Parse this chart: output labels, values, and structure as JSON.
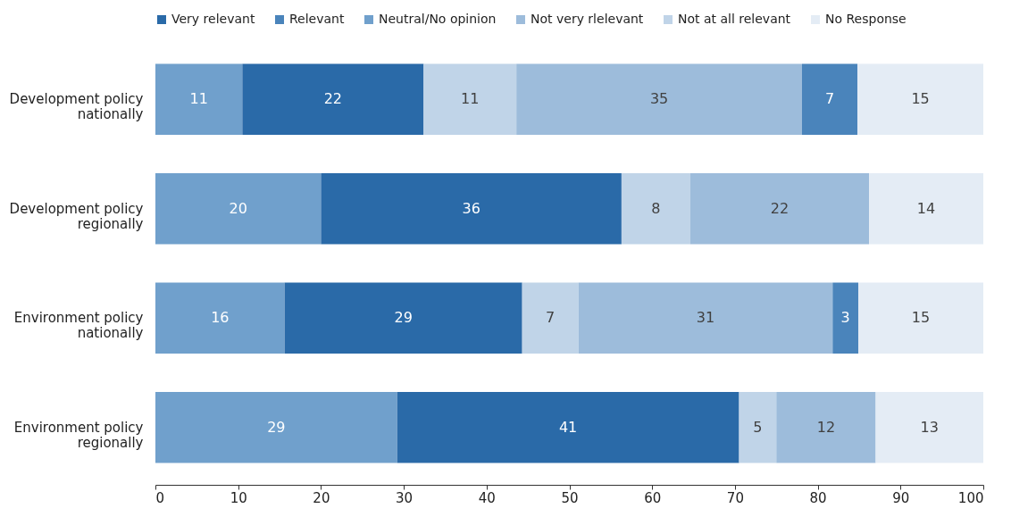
{
  "chart_data": {
    "type": "bar",
    "orientation": "horizontal",
    "stacked": true,
    "categories": [
      "Development policy nationally",
      "Development policy regionally",
      "Environment policy nationally",
      "Environment policy regionally"
    ],
    "series": [
      {
        "name": "Neutral/No opinion",
        "color": "#70a0cc",
        "values": [
          10.5,
          20,
          15.6,
          29.2
        ],
        "value_labels": [
          "11",
          "20",
          "16",
          "29"
        ]
      },
      {
        "name": "Very relevant",
        "color": "#2a6aa8",
        "values": [
          21.9,
          36.3,
          28.7,
          41.3
        ],
        "value_labels": [
          "22",
          "36",
          "29",
          "41"
        ]
      },
      {
        "name": "Not at all relevant",
        "color": "#c0d4e8",
        "values": [
          11.2,
          8.3,
          6.8,
          4.5
        ],
        "value_labels": [
          "11",
          "8",
          "7",
          "5"
        ]
      },
      {
        "name": "Not very rlelevant",
        "color": "#9dbcdb",
        "values": [
          34.5,
          21.6,
          30.7,
          12
        ],
        "value_labels": [
          "35",
          "22",
          "31",
          "12"
        ]
      },
      {
        "name": "Relevant",
        "color": "#4a84bb",
        "values": [
          6.7,
          null,
          3.1,
          null
        ],
        "value_labels": [
          "7",
          null,
          "3",
          null
        ]
      },
      {
        "name": "No Response",
        "color": "#e4ecf5",
        "values": [
          15.2,
          13.8,
          15.1,
          13
        ],
        "value_labels": [
          "15",
          "14",
          "15",
          "13"
        ]
      }
    ],
    "xlim": [
      0,
      100
    ],
    "xticks": [
      0,
      10,
      20,
      30,
      40,
      50,
      60,
      70,
      80,
      90,
      100
    ],
    "grid": false,
    "legend": "top"
  }
}
